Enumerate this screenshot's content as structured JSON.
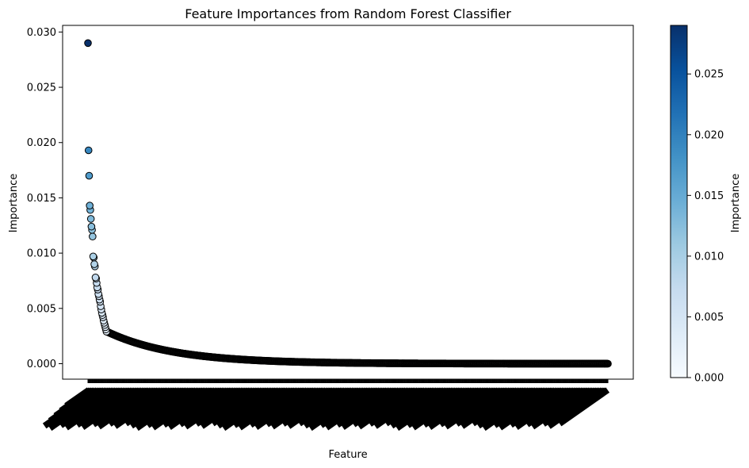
{
  "chart_data": {
    "type": "scatter",
    "title": "Feature Importances from Random Forest Classifier",
    "xlabel": "Feature",
    "ylabel": "Importance",
    "ylim": [
      -0.0014,
      0.0306
    ],
    "y_ticks": [
      "0.000",
      "0.005",
      "0.010",
      "0.015",
      "0.020",
      "0.025",
      "0.030"
    ],
    "x_tick_labels_legible": false,
    "colormap": "Blues",
    "colorbar": {
      "label": "Importance",
      "range": [
        0.0,
        0.029
      ],
      "ticks": [
        "0.000",
        "0.005",
        "0.010",
        "0.015",
        "0.020",
        "0.025"
      ]
    },
    "points_sorted_descending": true,
    "num_points_estimate": 900,
    "head_values": [
      0.029,
      0.0193,
      0.017,
      0.0143,
      0.0139,
      0.0131,
      0.0124,
      0.0121,
      0.0115,
      0.0097,
      0.0096,
      0.009,
      0.0088,
      0.0078,
      0.0077,
      0.0073,
      0.0069,
      0.0067,
      0.0063,
      0.0061,
      0.0058,
      0.0056,
      0.0052,
      0.0049,
      0.0046,
      0.0044,
      0.0042,
      0.0039,
      0.0037,
      0.0035,
      0.0033,
      0.0031,
      0.0029
    ],
    "tail_curve": "decays from 0.0029 to 0.0 over remaining features",
    "grid": false,
    "colors": {
      "edge": "#000000",
      "cmap_low": "#f7fbff",
      "cmap_high": "#08306b"
    }
  }
}
